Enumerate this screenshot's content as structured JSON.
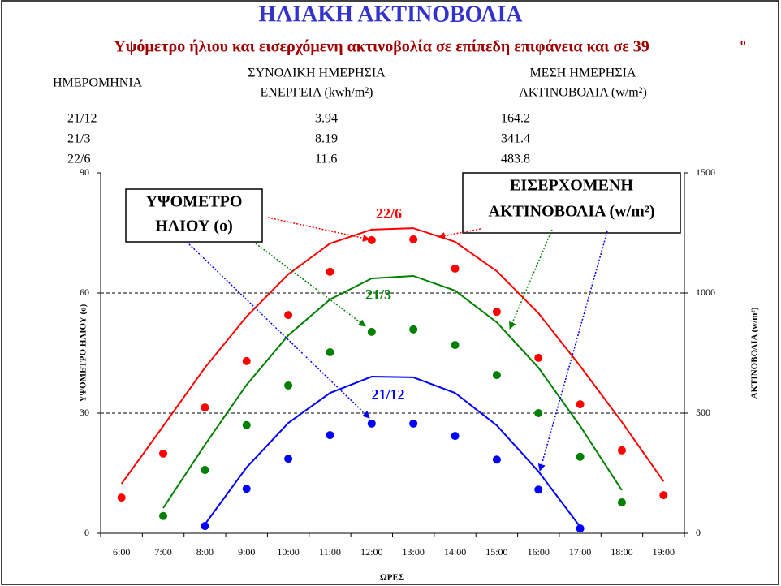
{
  "header": {
    "title": "ΗΛΙΑΚΗ ΑΚΤΙΝΟΒΟΛΙΑ",
    "subtitle": "Υψόμετρο ήλιου και εισερχόμενη ακτινοβολία σε επίπεδη επιφάνεια και σε 39",
    "subtitle_sup": "ο"
  },
  "table": {
    "header": [
      [
        "ΗΜΕΡΟΜΗΝΙΑ"
      ],
      [
        "ΣΥΝΟΛΙΚΗ ΗΜΕΡΗΣΙΑ",
        "ΕΝΕΡΓΕΙΑ (kwh/m²)"
      ],
      [
        "ΜΕΣΗ ΗΜΕΡΗΣΙΑ",
        "ΑΚΤΙΝΟΒΟΛΙΑ (w/m²)"
      ]
    ],
    "rows": [
      [
        "21/12",
        "3.94",
        "164.2"
      ],
      [
        "21/3",
        "8.19",
        "341.4"
      ],
      [
        "22/6",
        "11.6",
        "483.8"
      ]
    ]
  },
  "chart_data": {
    "type": "scatter-line",
    "x_label": "ΩΡΕΣ",
    "y_label": "ΥΨΟΜΕΤΡΟ ΗΛΙΟΥ (ο)",
    "y2_label": "ΑΚΤΙΝΟΒΟΛΙΑ (w/m²)",
    "categories": [
      "6:00",
      "7:00",
      "8:00",
      "9:00",
      "10:00",
      "11:00",
      "12:00",
      "13:00",
      "14:00",
      "15:00",
      "16:00",
      "17:00",
      "18:00",
      "19:00"
    ],
    "ylim": [
      0,
      90
    ],
    "yticks": [
      0,
      30,
      60,
      90
    ],
    "y2lim": [
      0,
      1500
    ],
    "y2ticks": [
      0,
      500,
      1000,
      1500
    ],
    "grid": true,
    "series": [
      {
        "name": "22/6",
        "color": "#ff0000",
        "mark": "dot",
        "values": [
          8.9,
          19.9,
          31.4,
          43,
          54.5,
          65.3,
          73.2,
          73.4,
          66.1,
          55.3,
          43.8,
          32.2,
          20.7,
          9.5
        ]
      },
      {
        "name": "21/3",
        "color": "#008000",
        "mark": "dot",
        "values": [
          null,
          4.3,
          15.8,
          27,
          36.9,
          45.2,
          50.3,
          50.9,
          47,
          39.5,
          30,
          19.1,
          7.7,
          null
        ]
      },
      {
        "name": "21/12",
        "color": "#0000ff",
        "mark": "dot",
        "values": [
          null,
          null,
          1.8,
          11.1,
          18.6,
          24.5,
          27.4,
          27.4,
          24.3,
          18.4,
          10.9,
          1.2,
          null,
          null
        ]
      },
      {
        "color": "#ff0000",
        "mark": "line",
        "axis": "y2",
        "values": [
          206,
          446,
          689,
          902,
          1078,
          1206,
          1264,
          1270,
          1213,
          1091,
          916,
          696,
          463,
          216
        ]
      },
      {
        "color": "#008000",
        "mark": "line",
        "axis": "y2",
        "values": [
          null,
          105,
          368,
          618,
          824,
          973,
          1061,
          1071,
          1010,
          878,
          689,
          446,
          179,
          null
        ]
      },
      {
        "color": "#0000ff",
        "mark": "line",
        "axis": "y2",
        "values": [
          null,
          null,
          37,
          274,
          459,
          584,
          652,
          649,
          584,
          449,
          257,
          27,
          null,
          null
        ]
      }
    ],
    "annotations": [
      [
        "ΥΨΟΜΕΤΡΟ",
        "ΗΛΙΟΥ (ο)"
      ],
      [
        "ΕΙΣΕΡΧΟΜΕΝΗ",
        "ΑΚΤΙΝΟΒΟΛΙΑ (w/m²)"
      ]
    ]
  }
}
